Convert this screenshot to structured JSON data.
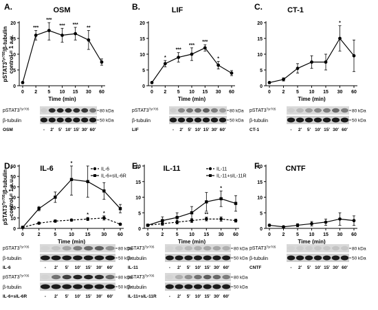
{
  "figure": {
    "yaxis_label_main": "pSTAT3",
    "yaxis_label_sup": "Tyr705",
    "yaxis_label_rest": "/β-tubulin",
    "yaxis_label_line2": "control = 1 a.u.",
    "xaxis_label": "Time (min)",
    "lane_labels": [
      "-",
      "2′",
      "5′",
      "10′",
      "15′",
      "30′",
      "60′"
    ],
    "blot_pstat_main": "pSTAT3",
    "blot_pstat_sup": "Tyr705",
    "blot_tubulin": "β-tubulin",
    "kda80": "80 kDa",
    "kda50": "50 kDa"
  },
  "chart_data": [
    {
      "type": "line",
      "letter": "A.",
      "title": "OSM",
      "x": [
        0,
        2,
        5,
        10,
        15,
        30,
        60
      ],
      "ylim": [
        0,
        20
      ],
      "yticks": [
        0,
        5,
        10,
        15,
        20
      ],
      "series": [
        {
          "style": "solid",
          "marker": "circle",
          "values": [
            1,
            16,
            17.5,
            16,
            16.5,
            14.5,
            7.5
          ],
          "errors": [
            0.3,
            1.5,
            3,
            2.2,
            2,
            3,
            1
          ],
          "sig": [
            "",
            "***",
            "***",
            "***",
            "***",
            "**",
            ""
          ]
        }
      ],
      "blots": [
        {
          "treatment": "OSM",
          "pstat_int": [
            0.05,
            0.85,
            0.9,
            0.9,
            0.85,
            0.8,
            0.5
          ]
        }
      ]
    },
    {
      "type": "line",
      "letter": "B.",
      "title": "LIF",
      "x": [
        0,
        2,
        5,
        10,
        15,
        30,
        60
      ],
      "ylim": [
        0,
        20
      ],
      "yticks": [
        0,
        5,
        10,
        15,
        20
      ],
      "series": [
        {
          "style": "solid",
          "marker": "circle",
          "values": [
            1,
            7,
            9,
            10,
            12,
            6.5,
            4
          ],
          "errors": [
            0.3,
            1,
            1.5,
            2,
            1,
            1.2,
            0.8
          ],
          "sig": [
            "",
            "*",
            "***",
            "***",
            "***",
            "*",
            ""
          ]
        }
      ],
      "blots": [
        {
          "treatment": "LIF",
          "pstat_int": [
            0.05,
            0.4,
            0.5,
            0.55,
            0.6,
            0.45,
            0.3
          ]
        }
      ]
    },
    {
      "type": "line",
      "letter": "C.",
      "title": "CT-1",
      "x": [
        0,
        2,
        5,
        10,
        15,
        30,
        60
      ],
      "ylim": [
        0,
        20
      ],
      "yticks": [
        0,
        5,
        10,
        15,
        20
      ],
      "series": [
        {
          "style": "solid",
          "marker": "circle",
          "values": [
            1,
            2,
            5.5,
            7.5,
            7.5,
            15,
            9.5
          ],
          "errors": [
            0.3,
            0.5,
            1.5,
            2,
            2.5,
            4,
            5
          ],
          "sig": [
            "",
            "",
            "",
            "",
            "",
            "*",
            ""
          ]
        }
      ],
      "blots": [
        {
          "treatment": "CT-1",
          "pstat_int": [
            0.05,
            0.15,
            0.3,
            0.4,
            0.45,
            0.55,
            0.45
          ]
        }
      ]
    },
    {
      "type": "line",
      "letter": "D.",
      "title": "IL-6",
      "x": [
        0,
        2,
        5,
        10,
        15,
        30,
        60
      ],
      "ylim": [
        0,
        60
      ],
      "yticks": [
        0,
        10,
        20,
        30,
        40,
        50,
        60
      ],
      "series": [
        {
          "name": "IL-6",
          "style": "dashed",
          "marker": "circle",
          "values": [
            1,
            5,
            7,
            8,
            9,
            10,
            4
          ],
          "errors": [
            0.3,
            1,
            1.2,
            1,
            1.5,
            2,
            1
          ],
          "sig": [
            "",
            "",
            "",
            "",
            "*",
            "*",
            ""
          ]
        },
        {
          "name": "IL-6+sIL-6R",
          "style": "solid",
          "marker": "square",
          "values": [
            1,
            19,
            30,
            47,
            45,
            36,
            19
          ],
          "errors": [
            0.3,
            2,
            5,
            15,
            15,
            8,
            4
          ],
          "sig": [
            "",
            "",
            "",
            "*",
            "",
            "",
            ""
          ]
        }
      ],
      "blots": [
        {
          "treatment": "IL-6",
          "pstat_int": [
            0.02,
            0.1,
            0.25,
            0.45,
            0.55,
            0.6,
            0.35
          ]
        },
        {
          "treatment": "IL-6+sIL-6R",
          "pstat_int": [
            0.02,
            0.5,
            0.75,
            0.9,
            0.9,
            0.85,
            0.55
          ]
        }
      ]
    },
    {
      "type": "line",
      "letter": "E.",
      "title": "IL-11",
      "x": [
        0,
        2,
        5,
        10,
        15,
        30,
        60
      ],
      "ylim": [
        0,
        20
      ],
      "yticks": [
        0,
        5,
        10,
        15,
        20
      ],
      "series": [
        {
          "name": "IL-11",
          "style": "dashed",
          "marker": "circle",
          "values": [
            1,
            1.5,
            2,
            2.5,
            3,
            3,
            2.5
          ],
          "errors": [
            0.3,
            0.5,
            0.6,
            0.6,
            0.6,
            0.7,
            0.5
          ],
          "sig": [
            "",
            "",
            "",
            "",
            "**",
            "",
            ""
          ]
        },
        {
          "name": "IL-11+sIL-11R",
          "style": "solid",
          "marker": "square",
          "values": [
            1,
            2.5,
            3.5,
            5,
            8.5,
            9.5,
            8
          ],
          "errors": [
            0.3,
            1.2,
            1.5,
            2,
            3,
            2.5,
            2.5
          ],
          "sig": [
            "",
            "",
            "",
            "",
            "",
            "*",
            ""
          ]
        }
      ],
      "blots": [
        {
          "treatment": "IL-11",
          "pstat_int": [
            0.02,
            0.08,
            0.15,
            0.2,
            0.25,
            0.25,
            0.2
          ]
        },
        {
          "treatment": "IL-11+sIL-11R",
          "pstat_int": [
            0.02,
            0.2,
            0.35,
            0.5,
            0.6,
            0.55,
            0.45
          ]
        }
      ]
    },
    {
      "type": "line",
      "letter": "F.",
      "title": "CNTF",
      "x": [
        0,
        2,
        5,
        10,
        15,
        30,
        60
      ],
      "ylim": [
        0,
        20
      ],
      "yticks": [
        0,
        5,
        10,
        15,
        20
      ],
      "series": [
        {
          "style": "solid",
          "marker": "circle",
          "values": [
            1,
            0.5,
            1,
            1.5,
            2,
            3,
            2.5
          ],
          "errors": [
            0.3,
            0.3,
            0.5,
            0.7,
            1,
            2,
            1.5
          ],
          "sig": [
            "",
            "",
            "",
            "",
            "",
            "",
            ""
          ]
        }
      ],
      "blots": [
        {
          "treatment": "CNTF",
          "pstat_int": [
            0.02,
            0.05,
            0.05,
            0.08,
            0.08,
            0.1,
            0.08
          ]
        }
      ]
    }
  ]
}
